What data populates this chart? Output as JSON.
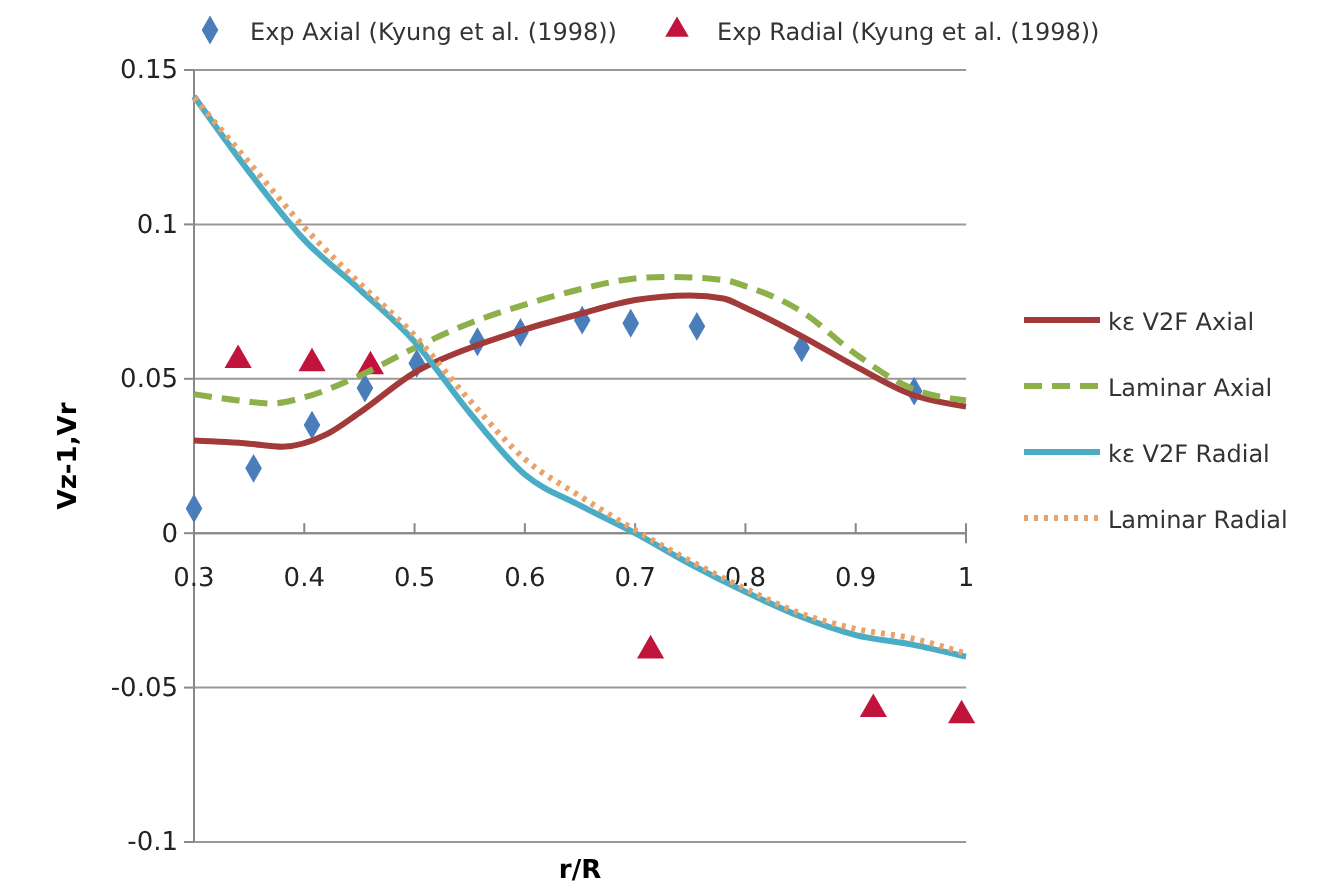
{
  "chart_data": {
    "type": "line",
    "xlabel": "r/R",
    "ylabel": "Vz-1,Vr",
    "xlim": [
      0.3,
      1
    ],
    "xticks": [
      0.3,
      0.4,
      0.5,
      0.6,
      0.7,
      0.8,
      0.9,
      1
    ],
    "ylim": [
      -0.1,
      0.15
    ],
    "yticks": [
      -0.1,
      -0.05,
      0,
      0.05,
      0.1,
      0.15
    ],
    "grid": "y",
    "legend": "right",
    "series": [
      {
        "name": "Exp Axial (Kyung et al. (1998))",
        "type": "scatter",
        "marker": "diamond",
        "color": "#4a7ebb",
        "x": [
          0.3,
          0.354,
          0.407,
          0.455,
          0.502,
          0.557,
          0.596,
          0.652,
          0.696,
          0.756,
          0.851,
          0.953
        ],
        "values": [
          0.008,
          0.021,
          0.035,
          0.047,
          0.055,
          0.062,
          0.065,
          0.069,
          0.068,
          0.067,
          0.06,
          0.046
        ]
      },
      {
        "name": "Exp Radial (Kyung et al. (1998))",
        "type": "scatter",
        "marker": "triangle",
        "color": "#c0143c",
        "x": [
          0.34,
          0.407,
          0.46,
          0.714,
          0.916,
          0.996
        ],
        "values": [
          0.056,
          0.055,
          0.054,
          -0.038,
          -0.057,
          -0.059
        ]
      },
      {
        "name": "kε V2F Axial",
        "line_style": "solid",
        "color": "#a33a3a",
        "x": [
          0.3,
          0.35,
          0.38,
          0.42,
          0.45,
          0.5,
          0.55,
          0.6,
          0.65,
          0.7,
          0.75,
          0.78,
          0.8,
          0.85,
          0.9,
          0.95,
          1
        ],
        "values": [
          0.03,
          0.029,
          0.028,
          0.032,
          0.039,
          0.052,
          0.06,
          0.066,
          0.071,
          0.0755,
          0.077,
          0.076,
          0.073,
          0.064,
          0.054,
          0.045,
          0.041
        ]
      },
      {
        "name": "Laminar Axial",
        "line_style": "dashed",
        "color": "#8db04a",
        "x": [
          0.3,
          0.34,
          0.37,
          0.4,
          0.45,
          0.5,
          0.55,
          0.6,
          0.65,
          0.7,
          0.73,
          0.78,
          0.8,
          0.85,
          0.9,
          0.95,
          1
        ],
        "values": [
          0.045,
          0.043,
          0.042,
          0.044,
          0.051,
          0.06,
          0.068,
          0.074,
          0.079,
          0.0825,
          0.083,
          0.082,
          0.08,
          0.072,
          0.058,
          0.047,
          0.043
        ]
      },
      {
        "name": "kε V2F Radial",
        "line_style": "solid",
        "color": "#4bacc6",
        "x": [
          0.3,
          0.35,
          0.4,
          0.45,
          0.5,
          0.55,
          0.6,
          0.65,
          0.7,
          0.75,
          0.8,
          0.85,
          0.9,
          0.95,
          1
        ],
        "values": [
          0.1415,
          0.117,
          0.095,
          0.079,
          0.062,
          0.039,
          0.019,
          0.009,
          0,
          -0.01,
          -0.019,
          -0.027,
          -0.033,
          -0.036,
          -0.04
        ]
      },
      {
        "name": "Laminar Radial",
        "line_style": "dotted",
        "color": "#e8a26a",
        "x": [
          0.3,
          0.35,
          0.4,
          0.45,
          0.5,
          0.55,
          0.6,
          0.65,
          0.7,
          0.75,
          0.8,
          0.85,
          0.9,
          0.95,
          1
        ],
        "values": [
          0.141,
          0.12,
          0.099,
          0.081,
          0.064,
          0.043,
          0.024,
          0.012,
          0.001,
          -0.009,
          -0.018,
          -0.026,
          -0.031,
          -0.034,
          -0.039
        ]
      }
    ]
  }
}
